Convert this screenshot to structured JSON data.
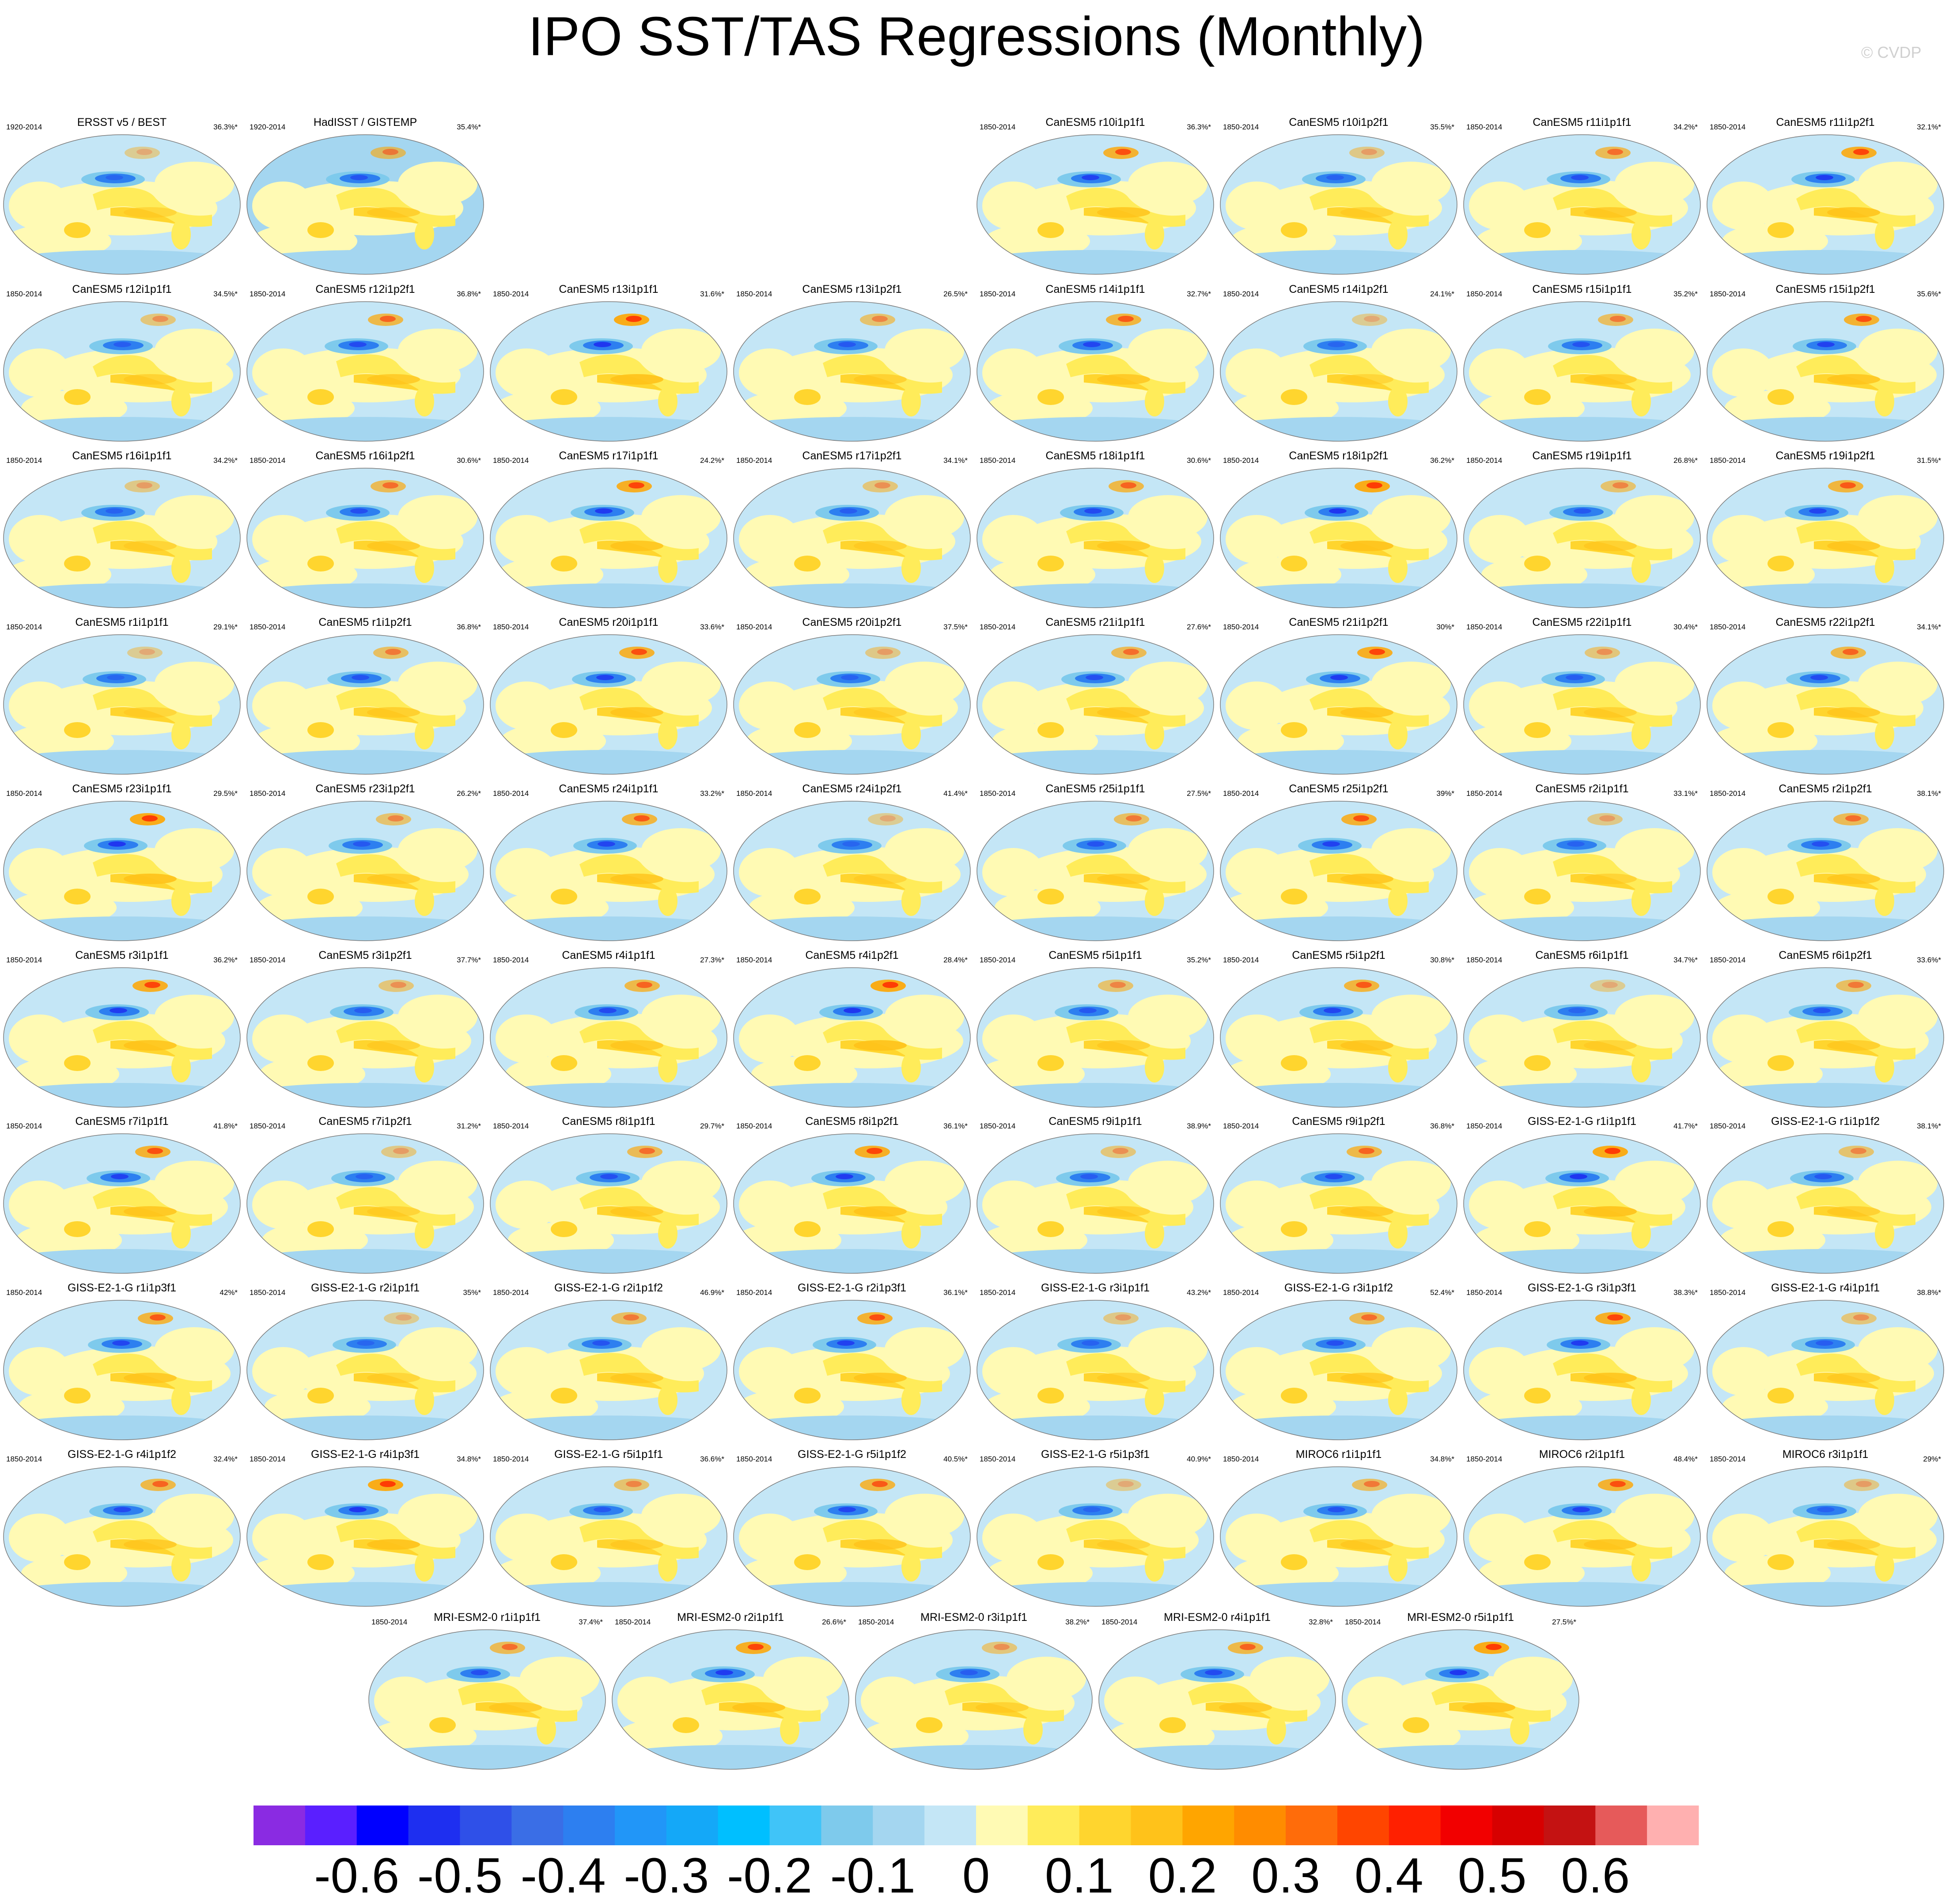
{
  "title": "IPO SST/TAS Regressions (Monthly)",
  "copyright": "© CVDP",
  "chart_data": {
    "type": "heatmap",
    "description_of_maps": "global SST/TAS regression maps onto the IPO index, one panel per dataset/ensemble member",
    "rows": [
      [
        {
          "title": "ERSST v5 / BEST",
          "period": "1920-2014",
          "pct": "36.3%*"
        },
        {
          "title": "HadISST / GISTEMP",
          "period": "1920-2014",
          "pct": "35.4%*"
        },
        null,
        null,
        {
          "title": "CanESM5 r10i1p1f1",
          "period": "1850-2014",
          "pct": "36.3%*"
        },
        {
          "title": "CanESM5 r10i1p2f1",
          "period": "1850-2014",
          "pct": "35.5%*"
        },
        {
          "title": "CanESM5 r11i1p1f1",
          "period": "1850-2014",
          "pct": "34.2%*"
        },
        {
          "title": "CanESM5 r11i1p2f1",
          "period": "1850-2014",
          "pct": "32.1%*"
        }
      ],
      [
        {
          "title": "CanESM5 r12i1p1f1",
          "period": "1850-2014",
          "pct": "34.5%*"
        },
        {
          "title": "CanESM5 r12i1p2f1",
          "period": "1850-2014",
          "pct": "36.8%*"
        },
        {
          "title": "CanESM5 r13i1p1f1",
          "period": "1850-2014",
          "pct": "31.6%*"
        },
        {
          "title": "CanESM5 r13i1p2f1",
          "period": "1850-2014",
          "pct": "26.5%*"
        },
        {
          "title": "CanESM5 r14i1p1f1",
          "period": "1850-2014",
          "pct": "32.7%*"
        },
        {
          "title": "CanESM5 r14i1p2f1",
          "period": "1850-2014",
          "pct": "24.1%*"
        },
        {
          "title": "CanESM5 r15i1p1f1",
          "period": "1850-2014",
          "pct": "35.2%*"
        },
        {
          "title": "CanESM5 r15i1p2f1",
          "period": "1850-2014",
          "pct": "35.6%*"
        }
      ],
      [
        {
          "title": "CanESM5 r16i1p1f1",
          "period": "1850-2014",
          "pct": "34.2%*"
        },
        {
          "title": "CanESM5 r16i1p2f1",
          "period": "1850-2014",
          "pct": "30.6%*"
        },
        {
          "title": "CanESM5 r17i1p1f1",
          "period": "1850-2014",
          "pct": "24.2%*"
        },
        {
          "title": "CanESM5 r17i1p2f1",
          "period": "1850-2014",
          "pct": "34.1%*"
        },
        {
          "title": "CanESM5 r18i1p1f1",
          "period": "1850-2014",
          "pct": "30.6%*"
        },
        {
          "title": "CanESM5 r18i1p2f1",
          "period": "1850-2014",
          "pct": "36.2%*"
        },
        {
          "title": "CanESM5 r19i1p1f1",
          "period": "1850-2014",
          "pct": "26.8%*"
        },
        {
          "title": "CanESM5 r19i1p2f1",
          "period": "1850-2014",
          "pct": "31.5%*"
        }
      ],
      [
        {
          "title": "CanESM5 r1i1p1f1",
          "period": "1850-2014",
          "pct": "29.1%*"
        },
        {
          "title": "CanESM5 r1i1p2f1",
          "period": "1850-2014",
          "pct": "36.8%*"
        },
        {
          "title": "CanESM5 r20i1p1f1",
          "period": "1850-2014",
          "pct": "33.6%*"
        },
        {
          "title": "CanESM5 r20i1p2f1",
          "period": "1850-2014",
          "pct": "37.5%*"
        },
        {
          "title": "CanESM5 r21i1p1f1",
          "period": "1850-2014",
          "pct": "27.6%*"
        },
        {
          "title": "CanESM5 r21i1p2f1",
          "period": "1850-2014",
          "pct": "30%*"
        },
        {
          "title": "CanESM5 r22i1p1f1",
          "period": "1850-2014",
          "pct": "30.4%*"
        },
        {
          "title": "CanESM5 r22i1p2f1",
          "period": "1850-2014",
          "pct": "34.1%*"
        }
      ],
      [
        {
          "title": "CanESM5 r23i1p1f1",
          "period": "1850-2014",
          "pct": "29.5%*"
        },
        {
          "title": "CanESM5 r23i1p2f1",
          "period": "1850-2014",
          "pct": "26.2%*"
        },
        {
          "title": "CanESM5 r24i1p1f1",
          "period": "1850-2014",
          "pct": "33.2%*"
        },
        {
          "title": "CanESM5 r24i1p2f1",
          "period": "1850-2014",
          "pct": "41.4%*"
        },
        {
          "title": "CanESM5 r25i1p1f1",
          "period": "1850-2014",
          "pct": "27.5%*"
        },
        {
          "title": "CanESM5 r25i1p2f1",
          "period": "1850-2014",
          "pct": "39%*"
        },
        {
          "title": "CanESM5 r2i1p1f1",
          "period": "1850-2014",
          "pct": "33.1%*"
        },
        {
          "title": "CanESM5 r2i1p2f1",
          "period": "1850-2014",
          "pct": "38.1%*"
        }
      ],
      [
        {
          "title": "CanESM5 r3i1p1f1",
          "period": "1850-2014",
          "pct": "36.2%*"
        },
        {
          "title": "CanESM5 r3i1p2f1",
          "period": "1850-2014",
          "pct": "37.7%*"
        },
        {
          "title": "CanESM5 r4i1p1f1",
          "period": "1850-2014",
          "pct": "27.3%*"
        },
        {
          "title": "CanESM5 r4i1p2f1",
          "period": "1850-2014",
          "pct": "28.4%*"
        },
        {
          "title": "CanESM5 r5i1p1f1",
          "period": "1850-2014",
          "pct": "35.2%*"
        },
        {
          "title": "CanESM5 r5i1p2f1",
          "period": "1850-2014",
          "pct": "30.8%*"
        },
        {
          "title": "CanESM5 r6i1p1f1",
          "period": "1850-2014",
          "pct": "34.7%*"
        },
        {
          "title": "CanESM5 r6i1p2f1",
          "period": "1850-2014",
          "pct": "33.6%*"
        }
      ],
      [
        {
          "title": "CanESM5 r7i1p1f1",
          "period": "1850-2014",
          "pct": "41.8%*"
        },
        {
          "title": "CanESM5 r7i1p2f1",
          "period": "1850-2014",
          "pct": "31.2%*"
        },
        {
          "title": "CanESM5 r8i1p1f1",
          "period": "1850-2014",
          "pct": "29.7%*"
        },
        {
          "title": "CanESM5 r8i1p2f1",
          "period": "1850-2014",
          "pct": "36.1%*"
        },
        {
          "title": "CanESM5 r9i1p1f1",
          "period": "1850-2014",
          "pct": "38.9%*"
        },
        {
          "title": "CanESM5 r9i1p2f1",
          "period": "1850-2014",
          "pct": "36.8%*"
        },
        {
          "title": "GISS-E2-1-G r1i1p1f1",
          "period": "1850-2014",
          "pct": "41.7%*"
        },
        {
          "title": "GISS-E2-1-G r1i1p1f2",
          "period": "1850-2014",
          "pct": "38.1%*"
        }
      ],
      [
        {
          "title": "GISS-E2-1-G r1i1p3f1",
          "period": "1850-2014",
          "pct": "42%*"
        },
        {
          "title": "GISS-E2-1-G r2i1p1f1",
          "period": "1850-2014",
          "pct": "35%*"
        },
        {
          "title": "GISS-E2-1-G r2i1p1f2",
          "period": "1850-2014",
          "pct": "46.9%*"
        },
        {
          "title": "GISS-E2-1-G r2i1p3f1",
          "period": "1850-2014",
          "pct": "36.1%*"
        },
        {
          "title": "GISS-E2-1-G r3i1p1f1",
          "period": "1850-2014",
          "pct": "43.2%*"
        },
        {
          "title": "GISS-E2-1-G r3i1p1f2",
          "period": "1850-2014",
          "pct": "52.4%*"
        },
        {
          "title": "GISS-E2-1-G r3i1p3f1",
          "period": "1850-2014",
          "pct": "38.3%*"
        },
        {
          "title": "GISS-E2-1-G r4i1p1f1",
          "period": "1850-2014",
          "pct": "38.8%*"
        }
      ],
      [
        {
          "title": "GISS-E2-1-G r4i1p1f2",
          "period": "1850-2014",
          "pct": "32.4%*"
        },
        {
          "title": "GISS-E2-1-G r4i1p3f1",
          "period": "1850-2014",
          "pct": "34.8%*"
        },
        {
          "title": "GISS-E2-1-G r5i1p1f1",
          "period": "1850-2014",
          "pct": "36.6%*"
        },
        {
          "title": "GISS-E2-1-G r5i1p1f2",
          "period": "1850-2014",
          "pct": "40.5%*"
        },
        {
          "title": "GISS-E2-1-G r5i1p3f1",
          "period": "1850-2014",
          "pct": "40.9%*"
        },
        {
          "title": "MIROC6 r1i1p1f1",
          "period": "1850-2014",
          "pct": "34.8%*"
        },
        {
          "title": "MIROC6 r2i1p1f1",
          "period": "1850-2014",
          "pct": "48.4%*"
        },
        {
          "title": "MIROC6 r3i1p1f1",
          "period": "1850-2014",
          "pct": "29%*"
        }
      ],
      [
        {
          "title": "MRI-ESM2-0 r1i1p1f1",
          "period": "1850-2014",
          "pct": "37.4%*"
        },
        {
          "title": "MRI-ESM2-0 r2i1p1f1",
          "period": "1850-2014",
          "pct": "26.6%*"
        },
        {
          "title": "MRI-ESM2-0 r3i1p1f1",
          "period": "1850-2014",
          "pct": "38.2%*"
        },
        {
          "title": "MRI-ESM2-0 r4i1p1f1",
          "period": "1850-2014",
          "pct": "32.8%*"
        },
        {
          "title": "MRI-ESM2-0 r5i1p1f1",
          "period": "1850-2014",
          "pct": "27.5%*"
        }
      ]
    ],
    "colorbar": {
      "colors": [
        "#8a2be2",
        "#5a1fff",
        "#0000ff",
        "#1e2ff0",
        "#2f50e8",
        "#3a6ee6",
        "#2d7ff0",
        "#2196f8",
        "#14a8f8",
        "#00bfff",
        "#40c4f8",
        "#7ecaec",
        "#a4d6f0",
        "#c4e6f6",
        "#fffab4",
        "#ffec5a",
        "#ffd52e",
        "#ffc21a",
        "#ffa500",
        "#ff8c00",
        "#ff6c0a",
        "#ff4500",
        "#ff2000",
        "#f20000",
        "#d70000",
        "#c41212",
        "#e65a5a",
        "#ffb0b0"
      ],
      "tick_labels": [
        "-0.6",
        "-0.5",
        "-0.4",
        "-0.3",
        "-0.2",
        "-0.1",
        "0",
        "0.1",
        "0.2",
        "0.3",
        "0.4",
        "0.5",
        "0.6"
      ]
    }
  }
}
